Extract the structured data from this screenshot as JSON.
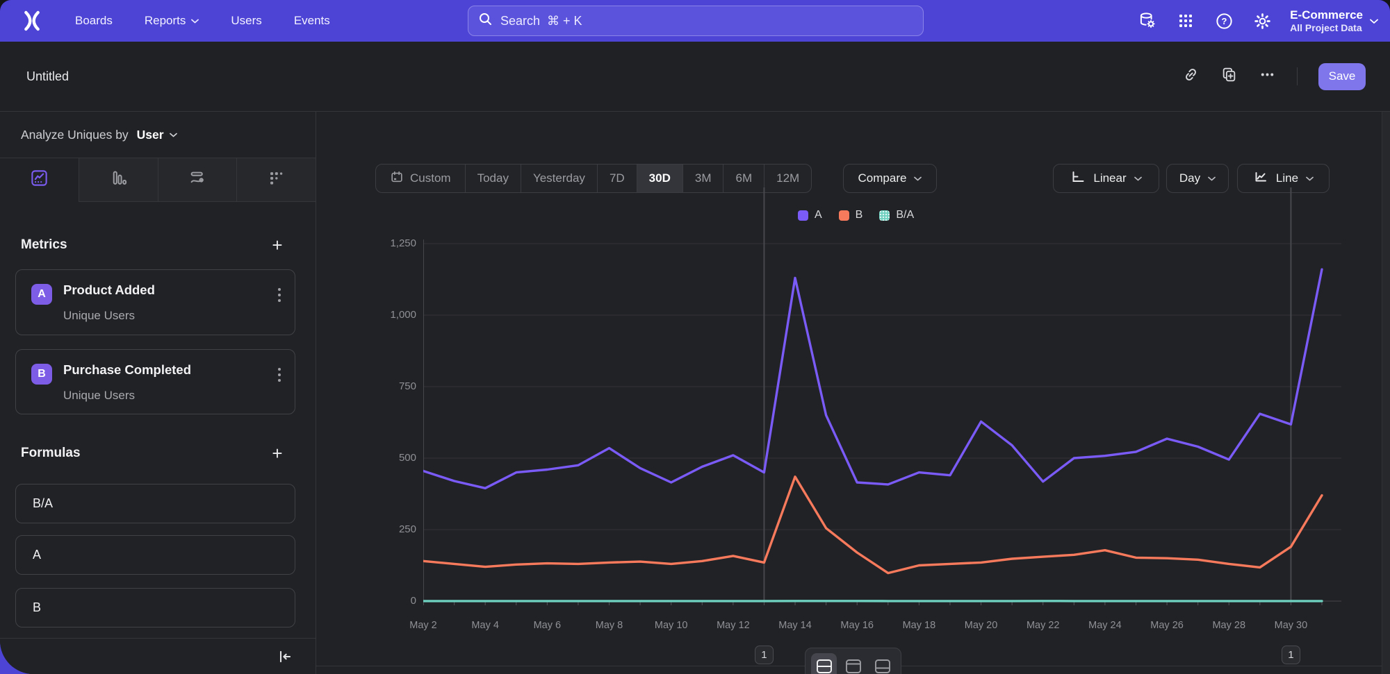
{
  "nav": {
    "items": [
      {
        "label": "Boards"
      },
      {
        "label": "Reports",
        "has_chevron": true
      },
      {
        "label": "Users"
      },
      {
        "label": "Events"
      }
    ],
    "search": {
      "placeholder": "Search  ⌘ + K"
    },
    "project": {
      "name": "E-Commerce",
      "scope": "All Project Data"
    }
  },
  "report_bar": {
    "title": "Untitled",
    "save_label": "Save"
  },
  "sidebar": {
    "analyze": {
      "prefix": "Analyze Uniques by",
      "value": "User"
    },
    "metrics": {
      "heading": "Metrics",
      "add_label": "+",
      "items": [
        {
          "badge": "A",
          "name": "Product Added",
          "subtitle": "Unique Users"
        },
        {
          "badge": "B",
          "name": "Purchase Completed",
          "subtitle": "Unique Users"
        }
      ]
    },
    "formulas": {
      "heading": "Formulas",
      "add_label": "+",
      "items": [
        {
          "name": "B/A"
        },
        {
          "name": "A"
        },
        {
          "name": "B"
        }
      ]
    }
  },
  "toolbar": {
    "ranges": [
      {
        "label": "Custom",
        "icon": "calendar"
      },
      {
        "label": "Today"
      },
      {
        "label": "Yesterday"
      },
      {
        "label": "7D"
      },
      {
        "label": "30D",
        "selected": true
      },
      {
        "label": "3M"
      },
      {
        "label": "6M"
      },
      {
        "label": "12M"
      }
    ],
    "compare_label": "Compare",
    "scale_label": "Linear",
    "interval_label": "Day",
    "chart_type_label": "Line"
  },
  "chart_data": {
    "type": "line",
    "x": [
      "May 2",
      "May 3",
      "May 4",
      "May 5",
      "May 6",
      "May 7",
      "May 8",
      "May 9",
      "May 10",
      "May 11",
      "May 12",
      "May 13",
      "May 14",
      "May 15",
      "May 16",
      "May 17",
      "May 18",
      "May 19",
      "May 20",
      "May 21",
      "May 22",
      "May 23",
      "May 24",
      "May 25",
      "May 26",
      "May 27",
      "May 28",
      "May 29",
      "May 30",
      "May 31"
    ],
    "x_tick_every": 2,
    "series": [
      {
        "name": "A",
        "color": "#7b5bf7",
        "values": [
          455,
          420,
          395,
          450,
          460,
          475,
          535,
          465,
          415,
          470,
          510,
          450,
          1130,
          650,
          415,
          408,
          450,
          440,
          628,
          545,
          418,
          500,
          508,
          522,
          568,
          540,
          495,
          655,
          618,
          1160
        ]
      },
      {
        "name": "B",
        "color": "#f87a5c",
        "values": [
          140,
          130,
          120,
          128,
          132,
          130,
          135,
          138,
          130,
          140,
          158,
          135,
          435,
          255,
          170,
          98,
          125,
          130,
          135,
          148,
          155,
          162,
          178,
          152,
          150,
          145,
          130,
          118,
          190,
          370
        ]
      },
      {
        "name": "B/A",
        "color": "#6ed0bf",
        "values": [
          0.31,
          0.31,
          0.3,
          0.28,
          0.29,
          0.27,
          0.25,
          0.3,
          0.31,
          0.3,
          0.31,
          0.3,
          0.38,
          0.39,
          0.41,
          0.24,
          0.28,
          0.3,
          0.21,
          0.27,
          0.37,
          0.32,
          0.35,
          0.29,
          0.26,
          0.27,
          0.26,
          0.18,
          0.31,
          0.32
        ]
      }
    ],
    "ylim": [
      0,
      1250
    ],
    "yticks": [
      0,
      250,
      500,
      750,
      1000,
      1250
    ],
    "ytick_labels": [
      "0",
      "250",
      "500",
      "750",
      "1,000",
      "1,250"
    ],
    "grid": "horizontal",
    "legend_position": "top",
    "annotations": [
      {
        "x_label": "May 13",
        "badge": "1"
      },
      {
        "x_label": "May 30",
        "badge": "1"
      }
    ]
  },
  "colors": {
    "nav_accent": "#4d44d6",
    "save_button": "#7e76ea",
    "metric_badge": "#7d5ce6",
    "series_a": "#7b5bf7",
    "series_b": "#f87a5c",
    "series_ba": "#6ed0bf"
  }
}
